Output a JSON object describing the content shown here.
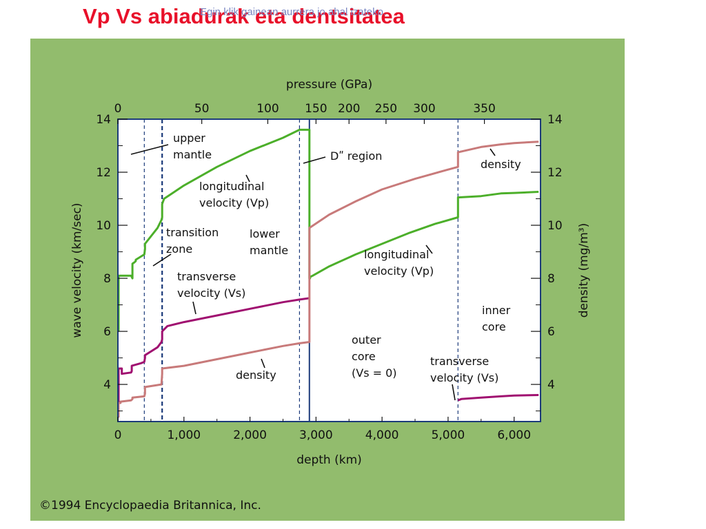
{
  "slide": {
    "title": "Vp Vs abiadurak eta dentsitatea",
    "hint": "Egin klik gainean aurrera jo ahal izateko."
  },
  "copyright": "©1994 Encyclopaedia Britannica, Inc.",
  "colors": {
    "panel_bg": "#92bc6d",
    "plot_bg": "#ffffff",
    "vp_line": "#4caf2a",
    "vs_line": "#a01070",
    "density_line": "#c87a7a",
    "boundary": "#1b3a7a"
  },
  "chart_data": {
    "type": "line",
    "xlabel": "depth (km)",
    "x2label": "pressure (GPa)",
    "ylabel": "wave velocity (km/sec)",
    "y2label": "density (mg/m³)",
    "xlim": [
      0,
      6400
    ],
    "ylim": [
      2.6,
      14
    ],
    "xticks": [
      0,
      1000,
      2000,
      3000,
      4000,
      5000,
      6000
    ],
    "xtick_labels": [
      "0",
      "1,000",
      "2,000",
      "3,000",
      "4,000",
      "5,000",
      "6,000"
    ],
    "yticks": [
      4,
      6,
      8,
      10,
      12,
      14
    ],
    "ytick_labels": [
      "4",
      "6",
      "8",
      "10",
      "12",
      "14"
    ],
    "y2tick_labels": [
      "4",
      "6",
      "8",
      "10",
      "12",
      "14"
    ],
    "pressure_ticks": [
      {
        "label": "0",
        "depth": 0
      },
      {
        "label": "50",
        "depth": 1270
      },
      {
        "label": "100",
        "depth": 2270
      },
      {
        "label": "150",
        "depth": 3000
      },
      {
        "label": "200",
        "depth": 3500
      },
      {
        "label": "250",
        "depth": 4060
      },
      {
        "label": "300",
        "depth": 4640
      },
      {
        "label": "350",
        "depth": 5550
      }
    ],
    "grid": false,
    "boundaries": [
      {
        "depth": 400,
        "style": "dashed"
      },
      {
        "depth": 670,
        "style": "dashed-bold"
      },
      {
        "depth": 2750,
        "style": "dashed"
      },
      {
        "depth": 2900,
        "style": "solid"
      },
      {
        "depth": 5150,
        "style": "dashed"
      }
    ],
    "series": [
      {
        "name": "longitudinal velocity (Vp)",
        "color": "#4caf2a",
        "x": [
          10,
          10,
          40,
          40,
          200,
          220,
          220,
          250,
          270,
          270,
          400,
          410,
          410,
          600,
          660,
          670,
          670,
          700,
          1000,
          1500,
          2000,
          2500,
          2750,
          2900,
          2900,
          2910,
          2910,
          2950,
          3200,
          3600,
          4000,
          4400,
          4800,
          5150,
          5150,
          5500,
          5800,
          6000,
          6371
        ],
        "y": [
          6.0,
          8.1,
          8.1,
          8.1,
          8.1,
          8.0,
          8.55,
          8.6,
          8.65,
          8.7,
          8.9,
          9.1,
          9.3,
          9.9,
          10.2,
          10.3,
          10.8,
          11.0,
          11.5,
          12.2,
          12.8,
          13.3,
          13.6,
          13.6,
          8.0,
          8.0,
          8.05,
          8.1,
          8.45,
          8.9,
          9.3,
          9.7,
          10.05,
          10.3,
          11.05,
          11.1,
          11.2,
          11.22,
          11.26
        ]
      },
      {
        "name": "transverse velocity (Vs)",
        "color": "#a01070",
        "x": [
          10,
          10,
          60,
          60,
          200,
          210,
          210,
          350,
          400,
          410,
          410,
          600,
          660,
          670,
          670,
          750,
          1000,
          1500,
          2000,
          2500,
          2750,
          2900,
          5150,
          5150,
          5200,
          5500,
          5800,
          6000,
          6371
        ],
        "y": [
          2.9,
          4.6,
          4.6,
          4.4,
          4.45,
          4.5,
          4.7,
          4.8,
          4.85,
          5.0,
          5.1,
          5.4,
          5.6,
          5.7,
          6.0,
          6.2,
          6.35,
          6.6,
          6.85,
          7.1,
          7.2,
          7.25,
          null,
          3.4,
          3.45,
          3.5,
          3.55,
          3.58,
          3.6
        ]
      },
      {
        "name": "density",
        "color": "#c87a7a",
        "x": [
          10,
          10,
          40,
          40,
          200,
          220,
          220,
          400,
          410,
          410,
          660,
          670,
          670,
          1000,
          1500,
          2000,
          2500,
          2750,
          2900,
          2900,
          3200,
          3600,
          4000,
          4500,
          5000,
          5150,
          5150,
          5500,
          5800,
          6000,
          6371
        ],
        "y": [
          2.75,
          3.3,
          3.3,
          3.35,
          3.4,
          3.45,
          3.5,
          3.55,
          3.65,
          3.9,
          4.0,
          4.4,
          4.6,
          4.7,
          4.95,
          5.2,
          5.45,
          5.55,
          5.6,
          9.9,
          10.4,
          10.9,
          11.35,
          11.75,
          12.1,
          12.2,
          12.75,
          12.95,
          13.05,
          13.1,
          13.15
        ]
      }
    ],
    "annotations": [
      {
        "lines": [
          "upper",
          "mantle"
        ]
      },
      {
        "lines": [
          "Dʺ region"
        ]
      },
      {
        "lines": [
          "longitudinal",
          "velocity (Vp)"
        ]
      },
      {
        "lines": [
          "transition",
          "zone"
        ]
      },
      {
        "lines": [
          "lower",
          "mantle"
        ]
      },
      {
        "lines": [
          "transverse",
          "velocity (Vs)"
        ]
      },
      {
        "lines": [
          "density"
        ]
      },
      {
        "lines": [
          "outer",
          "core",
          "(Vs = 0)"
        ]
      },
      {
        "lines": [
          "longitudinal",
          "velocity (Vp)"
        ]
      },
      {
        "lines": [
          "inner",
          "core"
        ]
      },
      {
        "lines": [
          "transverse",
          "velocity (Vs)"
        ]
      },
      {
        "lines": [
          "density"
        ]
      }
    ]
  }
}
